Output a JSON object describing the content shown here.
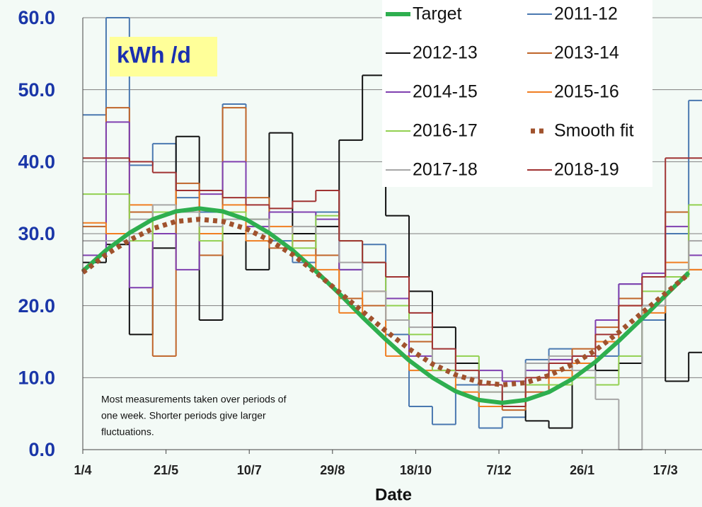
{
  "chart_data": {
    "type": "line",
    "title": "kWh /d",
    "x_label": "Date",
    "annotation": [
      "Most measurements taken over periods of",
      "one week.  Shorter periods give larger",
      "fluctuations."
    ],
    "xlim": [
      0,
      372
    ],
    "xticks": [
      {
        "value": 0,
        "label": "1/4"
      },
      {
        "value": 50,
        "label": "21/5"
      },
      {
        "value": 100,
        "label": "10/7"
      },
      {
        "value": 150,
        "label": "29/8"
      },
      {
        "value": 200,
        "label": "18/10"
      },
      {
        "value": 250,
        "label": "7/12"
      },
      {
        "value": 300,
        "label": "26/1"
      },
      {
        "value": 350,
        "label": "17/3"
      }
    ],
    "ylim": [
      0,
      60
    ],
    "yticks": [
      {
        "value": 0,
        "label": "0.0"
      },
      {
        "value": 10,
        "label": "10.0"
      },
      {
        "value": 20,
        "label": "20.0"
      },
      {
        "value": 30,
        "label": "30.0"
      },
      {
        "value": 40,
        "label": "40.0"
      },
      {
        "value": 50,
        "label": "50.0"
      },
      {
        "value": 60,
        "label": "60.0"
      }
    ],
    "grid": true,
    "legend": "top-right",
    "x": [
      0,
      14,
      28,
      42,
      56,
      70,
      84,
      98,
      112,
      126,
      140,
      154,
      168,
      182,
      196,
      210,
      224,
      238,
      252,
      266,
      280,
      294,
      308,
      322,
      336,
      350,
      364
    ],
    "series": [
      {
        "name": "Target",
        "color": "#2eaf4f",
        "values": [
          24.8,
          27.7,
          30.1,
          32.0,
          33.1,
          33.5,
          33.1,
          32.0,
          30.1,
          27.7,
          24.8,
          21.7,
          18.4,
          15.3,
          12.4,
          10.0,
          8.1,
          6.9,
          6.5,
          6.9,
          8.0,
          9.8,
          12.2,
          15.1,
          18.2,
          21.4,
          24.6
        ]
      },
      {
        "name": "2011-12",
        "color": "#4a78b0",
        "step": true,
        "values": [
          46.5,
          60.0,
          39.5,
          42.5,
          35.0,
          33.0,
          48.0,
          32.0,
          29.0,
          26.0,
          33.0,
          25.0,
          28.5,
          16.0,
          6.0,
          3.5,
          9.0,
          3.0,
          4.5,
          12.5,
          14.0,
          10.0,
          13.0,
          23.0,
          18.0,
          30.0,
          48.5
        ]
      },
      {
        "name": "2012-13",
        "color": "#111111",
        "step": true,
        "values": [
          26.0,
          28.5,
          16.0,
          28.0,
          43.5,
          18.0,
          30.0,
          25.0,
          44.0,
          30.0,
          31.0,
          43.0,
          52.0,
          32.5,
          22.0,
          17.0,
          12.0,
          6.0,
          8.0,
          4.0,
          3.0,
          12.0,
          11.0,
          12.0,
          20.0,
          9.5,
          13.5
        ]
      },
      {
        "name": "2013-14",
        "color": "#c0652a",
        "step": true,
        "values": [
          31.0,
          47.5,
          33.0,
          13.0,
          37.0,
          27.0,
          47.5,
          35.0,
          28.0,
          29.0,
          27.0,
          21.0,
          20.0,
          18.0,
          15.0,
          11.0,
          10.0,
          6.0,
          5.5,
          8.0,
          11.0,
          14.0,
          17.0,
          21.0,
          24.0,
          33.0,
          25.0
        ]
      },
      {
        "name": "2014-15",
        "color": "#8040b0",
        "step": true,
        "values": [
          27.0,
          45.5,
          22.5,
          30.0,
          25.0,
          35.5,
          40.0,
          31.0,
          33.0,
          33.0,
          32.0,
          25.0,
          26.0,
          21.0,
          13.0,
          12.0,
          10.0,
          11.0,
          9.5,
          11.0,
          12.5,
          13.0,
          18.0,
          23.0,
          24.5,
          31.0,
          27.0
        ]
      },
      {
        "name": "2015-16",
        "color": "#f07e22",
        "step": true,
        "values": [
          31.5,
          30.0,
          34.0,
          33.0,
          36.0,
          30.0,
          34.0,
          29.0,
          31.0,
          27.0,
          25.0,
          19.0,
          22.0,
          13.0,
          11.0,
          12.0,
          8.0,
          6.0,
          6.0,
          9.0,
          10.0,
          12.0,
          15.0,
          20.0,
          19.0,
          26.0,
          25.0
        ]
      },
      {
        "name": "2016-17",
        "color": "#92d050",
        "step": true,
        "values": [
          35.5,
          35.5,
          29.0,
          33.0,
          33.0,
          29.0,
          33.0,
          32.0,
          30.0,
          28.0,
          32.5,
          29.0,
          26.0,
          20.0,
          16.0,
          11.0,
          13.0,
          8.0,
          8.0,
          9.0,
          9.0,
          10.0,
          9.0,
          13.0,
          22.0,
          24.0,
          34.0
        ]
      },
      {
        "name": "Smooth fit",
        "color": "#a0522d",
        "dotted": true,
        "values": [
          24.6,
          27.1,
          29.1,
          30.7,
          31.7,
          32.0,
          31.7,
          30.7,
          29.1,
          27.1,
          24.6,
          21.9,
          19.2,
          16.5,
          14.0,
          11.9,
          10.4,
          9.4,
          9.0,
          9.3,
          10.3,
          11.8,
          13.8,
          16.3,
          19.0,
          21.7,
          24.4
        ]
      },
      {
        "name": "2017-18",
        "color": "#a6a6a6",
        "step": true,
        "values": [
          29.0,
          29.0,
          32.0,
          34.0,
          33.0,
          31.0,
          32.0,
          32.0,
          30.0,
          31.0,
          30.0,
          26.0,
          22.0,
          18.0,
          17.0,
          12.0,
          10.0,
          8.0,
          8.0,
          12.0,
          13.0,
          11.0,
          7.0,
          0.0,
          20.0,
          25.0,
          29.0
        ]
      },
      {
        "name": "2018-19",
        "color": "#a03232",
        "step": true,
        "values": [
          40.5,
          40.5,
          40.0,
          38.5,
          36.0,
          36.0,
          35.0,
          34.0,
          33.5,
          34.5,
          36.0,
          29.0,
          26.0,
          24.0,
          19.0,
          14.0,
          11.0,
          9.0,
          6.0,
          10.0,
          12.0,
          13.0,
          16.0,
          20.0,
          24.0,
          40.5,
          40.5
        ]
      }
    ]
  }
}
